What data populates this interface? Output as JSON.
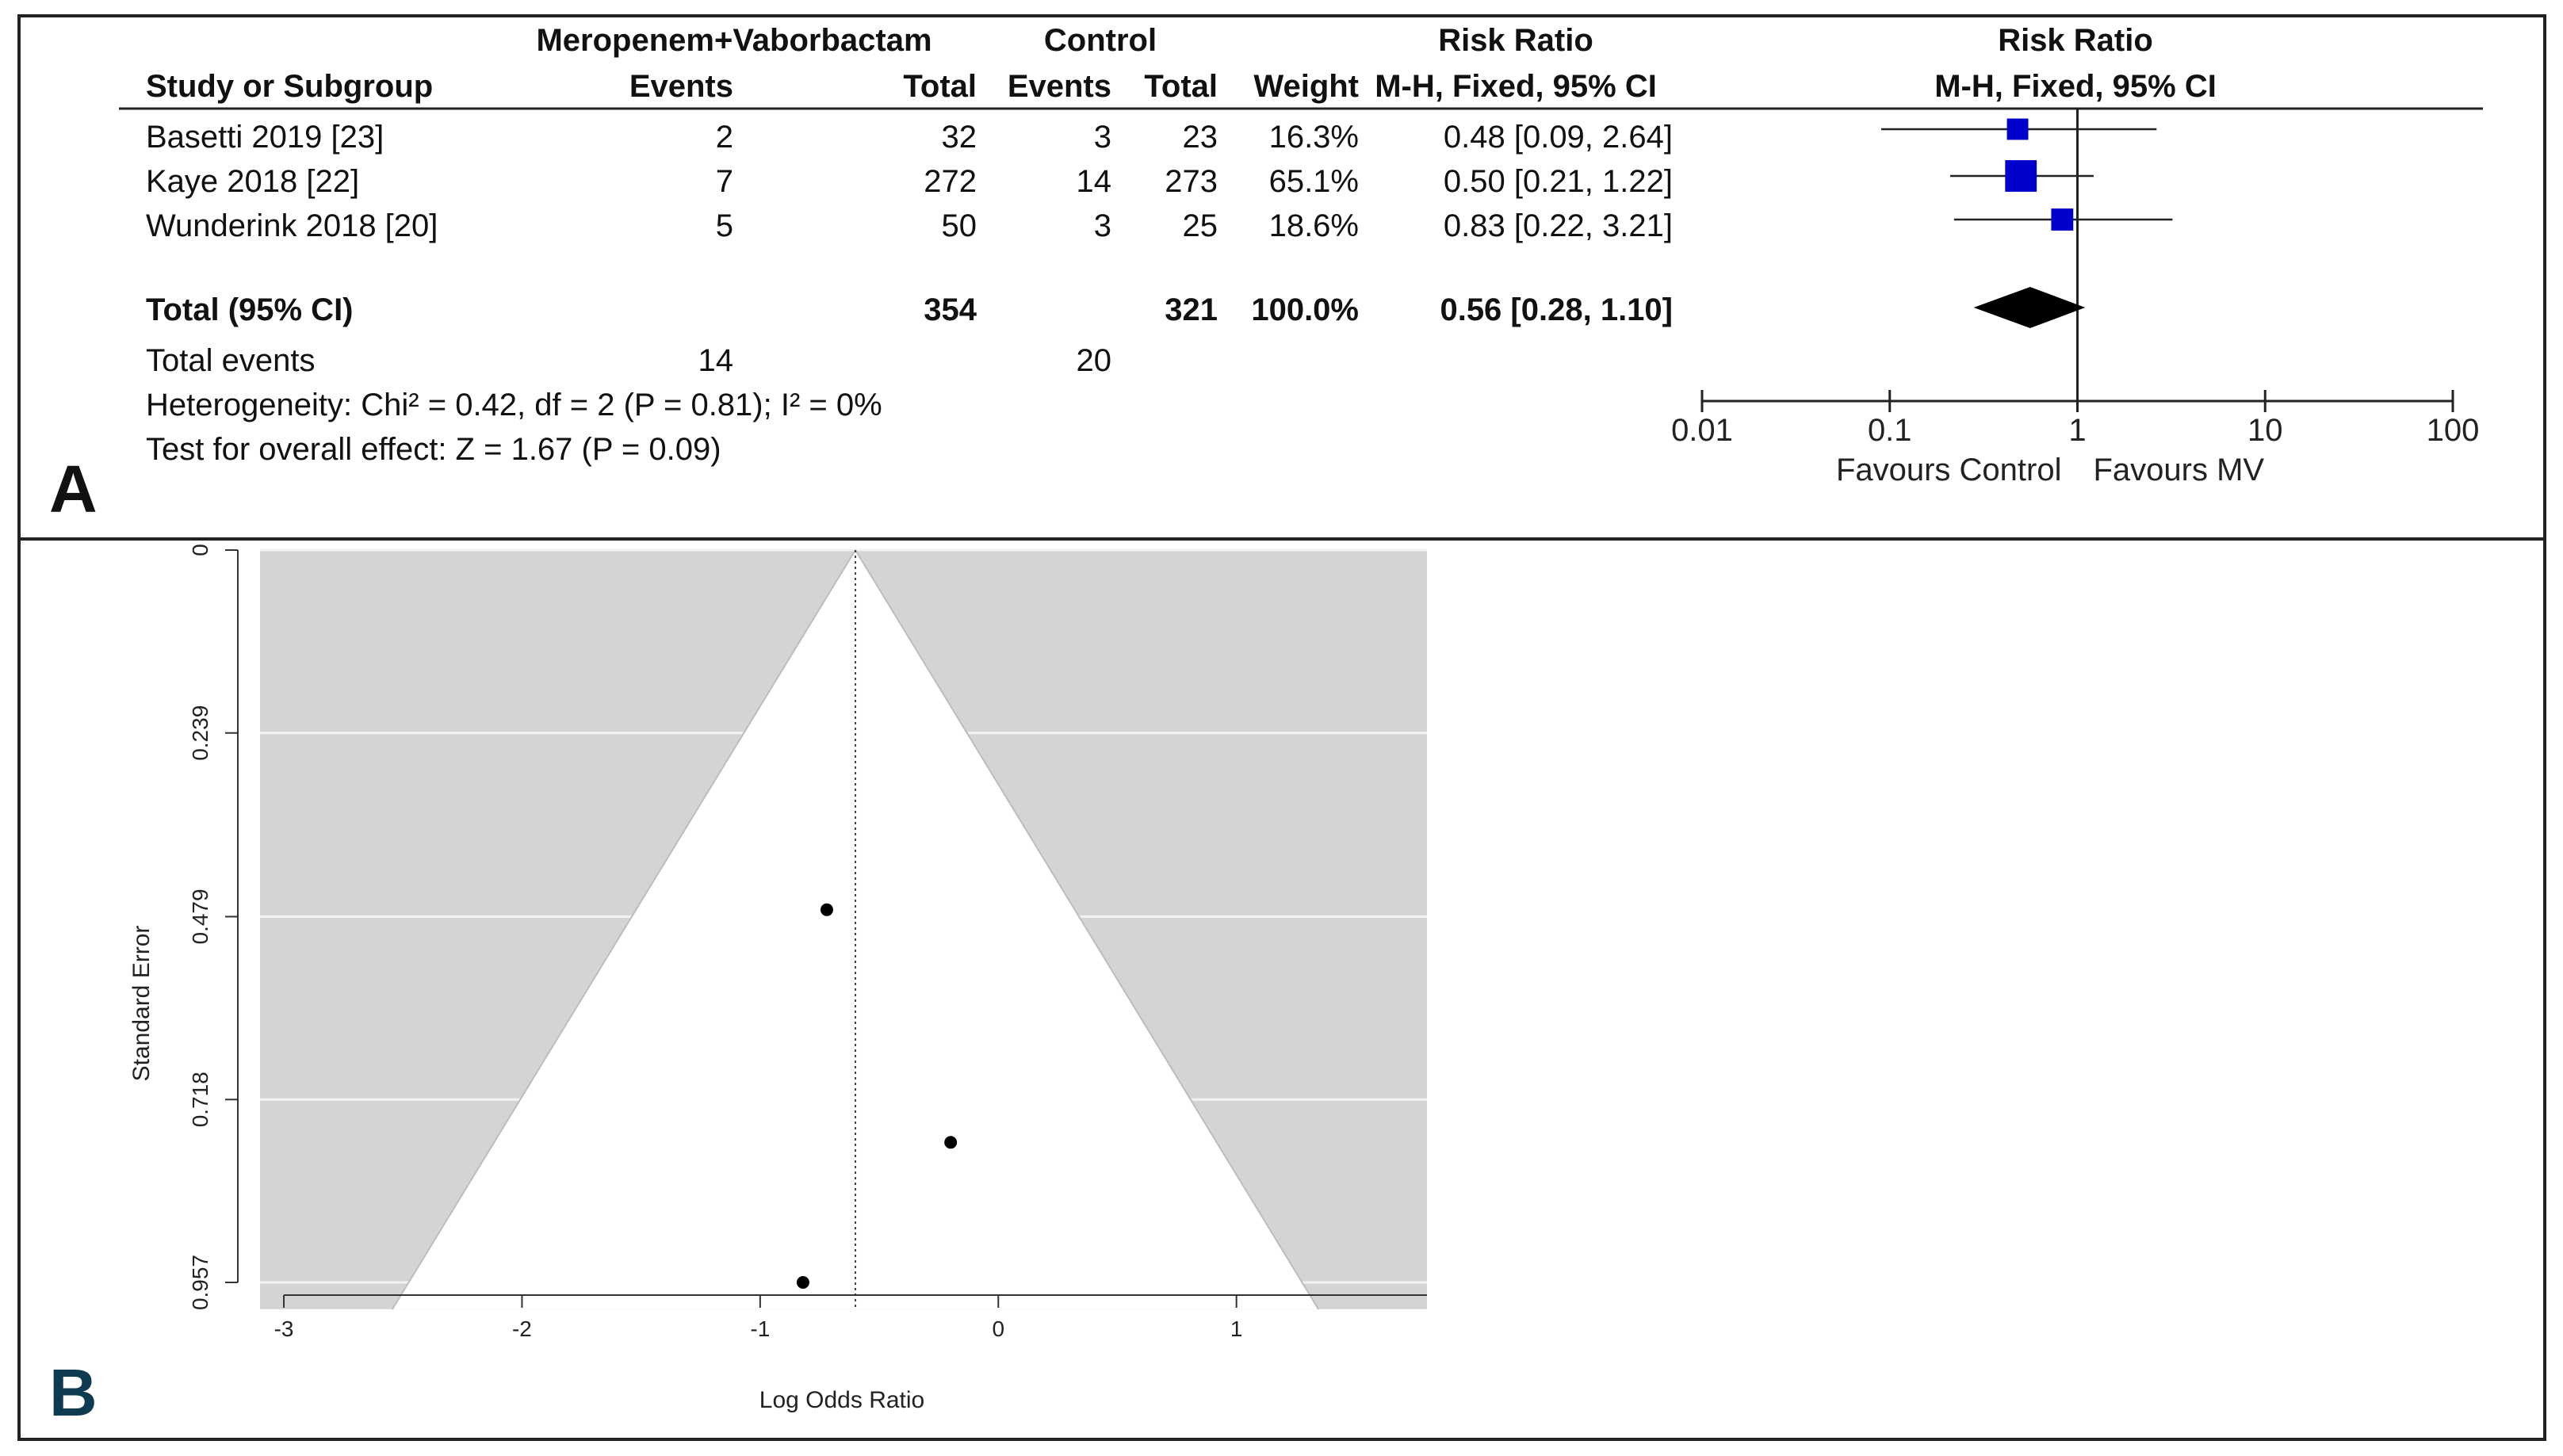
{
  "panels": {
    "a_letter": "A",
    "b_letter": "B",
    "a_letter_color": "#111111",
    "b_letter_color": "#0e3a52"
  },
  "forest": {
    "group_headers": {
      "treatment": "Meropenem+Vaborbactam",
      "control": "Control",
      "rr_col": "Risk Ratio",
      "rr_plot": "Risk Ratio"
    },
    "col_headers": {
      "study": "Study or Subgroup",
      "t_events": "Events",
      "t_total": "Total",
      "c_events": "Events",
      "c_total": "Total",
      "weight": "Weight",
      "method_col": "M-H, Fixed, 95% CI",
      "method_plot": "M-H, Fixed, 95% CI"
    },
    "studies": [
      {
        "name": "Basetti 2019 [23]",
        "t_events": "2",
        "t_total": "32",
        "c_events": "3",
        "c_total": "23",
        "weight": "16.3%",
        "ci_text": "0.48 [0.09, 2.64]",
        "rr": 0.48,
        "lo": 0.09,
        "hi": 2.64,
        "w": 16.3
      },
      {
        "name": "Kaye 2018 [22]",
        "t_events": "7",
        "t_total": "272",
        "c_events": "14",
        "c_total": "273",
        "weight": "65.1%",
        "ci_text": "0.50 [0.21, 1.22]",
        "rr": 0.5,
        "lo": 0.21,
        "hi": 1.22,
        "w": 65.1
      },
      {
        "name": "Wunderink 2018 [20]",
        "t_events": "5",
        "t_total": "50",
        "c_events": "3",
        "c_total": "25",
        "weight": "18.6%",
        "ci_text": "0.83 [0.22, 3.21]",
        "rr": 0.83,
        "lo": 0.22,
        "hi": 3.21,
        "w": 18.6
      }
    ],
    "total": {
      "label": "Total (95% CI)",
      "t_total": "354",
      "c_total": "321",
      "weight": "100.0%",
      "ci_text": "0.56 [0.28, 1.10]",
      "rr": 0.56,
      "lo": 0.28,
      "hi": 1.1
    },
    "total_events": {
      "label": "Total events",
      "t": "14",
      "c": "20"
    },
    "heterogeneity": "Heterogeneity: Chi² = 0.42, df = 2 (P = 0.81); I² = 0%",
    "overall_effect": "Test for overall effect: Z = 1.67 (P = 0.09)",
    "scale_ticks": [
      {
        "value": 0.01,
        "label": "0.01"
      },
      {
        "value": 0.1,
        "label": "0.1"
      },
      {
        "value": 1,
        "label": "1"
      },
      {
        "value": 10,
        "label": "10"
      },
      {
        "value": 100,
        "label": "100"
      }
    ],
    "favours_left": "Favours Control",
    "favours_right": "Favours MV",
    "marker_color": "#0000cc"
  },
  "chart_data": [
    {
      "type": "scatter",
      "title": "",
      "xlabel": "",
      "ylabel": "",
      "x_scale": "log",
      "xlim": [
        0.01,
        100
      ],
      "reference_line": 1,
      "series": [
        {
          "x": [
            0.48,
            0.5,
            0.83
          ],
          "lo": [
            0.09,
            0.21,
            0.22
          ],
          "hi": [
            2.64,
            1.22,
            3.21
          ],
          "weights": [
            16.3,
            65.1,
            18.6
          ]
        }
      ],
      "pooled": {
        "x": 0.56,
        "lo": 0.28,
        "hi": 1.1
      }
    },
    {
      "type": "scatter",
      "title": "",
      "xlabel": "Log Odds Ratio",
      "ylabel": "Standard Error",
      "xlim": [
        -3.1,
        1.8
      ],
      "ylim": [
        0,
        0.957
      ],
      "y_inverted": true,
      "x_ticks": [
        -3,
        -2,
        -1,
        0,
        1
      ],
      "y_ticks": [
        0,
        0.239,
        0.479,
        0.718,
        0.957
      ],
      "x_tick_labels": [
        "-3",
        "-2",
        "-1",
        "0",
        "1"
      ],
      "y_tick_labels": [
        "0",
        "0.239",
        "0.479",
        "0.718",
        "0.957"
      ],
      "center": -0.6,
      "points": [
        {
          "x": -0.72,
          "y": 0.47
        },
        {
          "x": -0.2,
          "y": 0.774
        },
        {
          "x": -0.82,
          "y": 0.957
        }
      ],
      "grid": true,
      "region_color": "#d4d4d4"
    }
  ]
}
